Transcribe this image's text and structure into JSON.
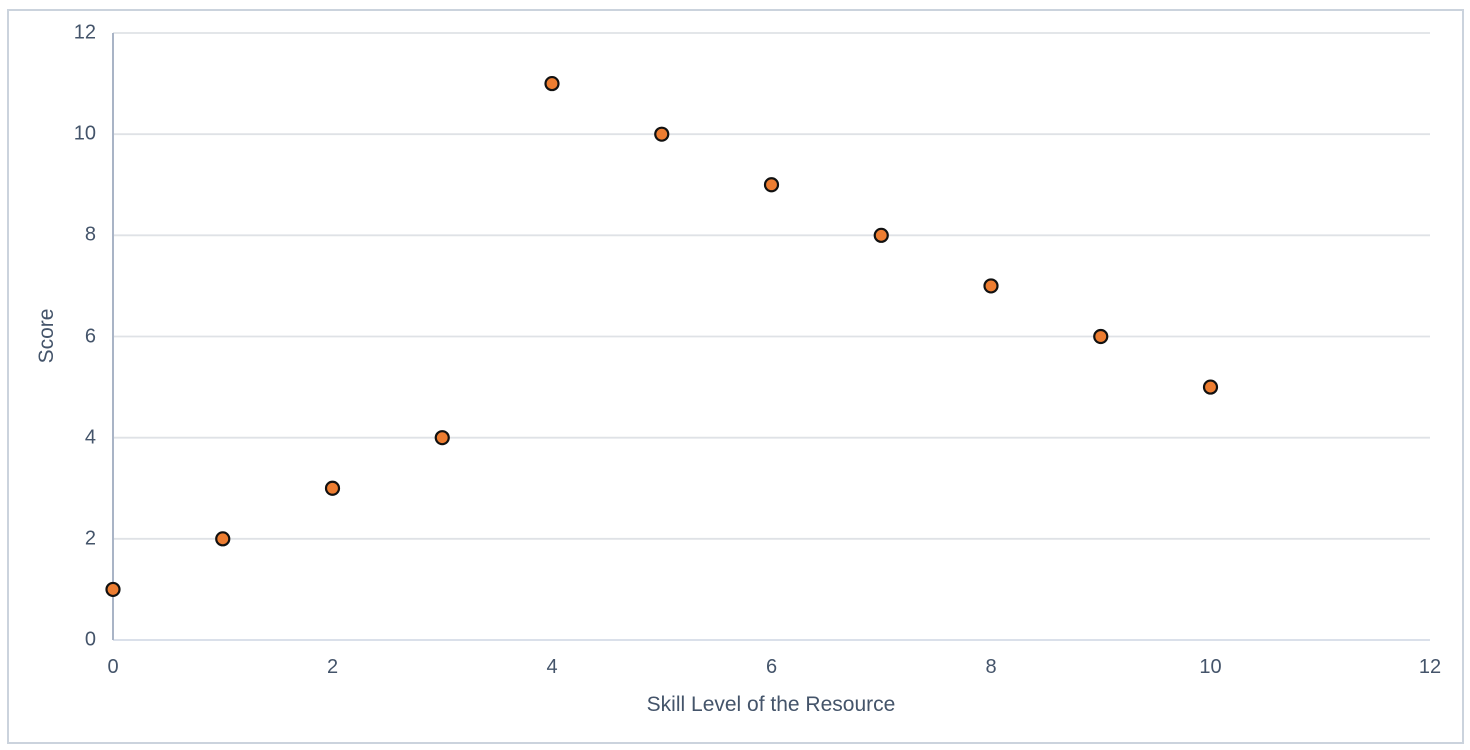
{
  "chart_data": {
    "type": "scatter",
    "x": [
      0,
      1,
      2,
      3,
      4,
      5,
      6,
      7,
      8,
      9,
      10
    ],
    "y": [
      1,
      2,
      3,
      4,
      11,
      10,
      9,
      8,
      7,
      6,
      5
    ],
    "xlabel": "Skill Level of the Resource",
    "ylabel": "Score",
    "xlim": [
      0,
      12
    ],
    "ylim": [
      0,
      12
    ],
    "xticks": [
      0,
      2,
      4,
      6,
      8,
      10,
      12
    ],
    "yticks": [
      0,
      2,
      4,
      6,
      8,
      10,
      12
    ],
    "grid": "horizontal-only",
    "legend": "none",
    "marker_fill": "#ED7D31",
    "marker_stroke": "#111111",
    "marker_radius": 6.5,
    "marker_stroke_width": 2.2
  },
  "colors": {
    "text": "#44546A",
    "gridline": "#DFE2E6",
    "x_axis_line": "#DAE0EA",
    "y_axis_line": "#A9B4C6",
    "frame_border": "#CBD3DD",
    "background": "#FFFFFF"
  }
}
